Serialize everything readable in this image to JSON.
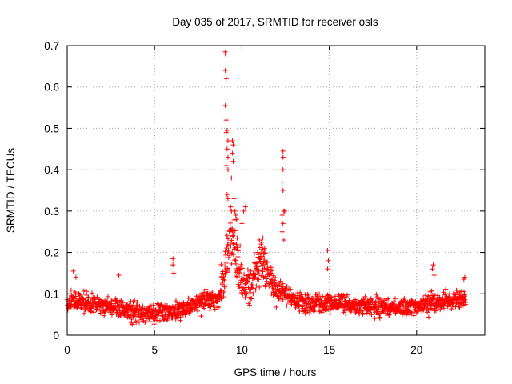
{
  "chart_data": {
    "type": "scatter",
    "title": "Day 035 of 2017, SRMTID for receiver osls",
    "xlabel": "GPS time / hours",
    "ylabel": "SRMTID / TECUs",
    "xlim": [
      0,
      23.9
    ],
    "ylim": [
      0,
      0.7
    ],
    "grid": true,
    "marker": "+",
    "series_color": "#ff0000",
    "x_ticks": [
      {
        "value": 0,
        "label": "0"
      },
      {
        "value": 5,
        "label": "5"
      },
      {
        "value": 10,
        "label": "10"
      },
      {
        "value": 15,
        "label": "15"
      },
      {
        "value": 20,
        "label": "20"
      }
    ],
    "y_ticks": [
      {
        "value": 0,
        "label": "0"
      },
      {
        "value": 0.1,
        "label": "0.1"
      },
      {
        "value": 0.2,
        "label": "0.2"
      },
      {
        "value": 0.3,
        "label": "0.3"
      },
      {
        "value": 0.4,
        "label": "0.4"
      },
      {
        "value": 0.5,
        "label": "0.5"
      },
      {
        "value": 0.6,
        "label": "0.6"
      },
      {
        "value": 0.7,
        "label": "0.7"
      }
    ],
    "x_range": [
      0.0,
      22.8
    ],
    "baseline_profile": [
      [
        0.0,
        0.075
      ],
      [
        0.5,
        0.085
      ],
      [
        1.0,
        0.078
      ],
      [
        2.0,
        0.07
      ],
      [
        3.0,
        0.065
      ],
      [
        4.0,
        0.058
      ],
      [
        5.0,
        0.052
      ],
      [
        6.0,
        0.058
      ],
      [
        7.0,
        0.07
      ],
      [
        8.0,
        0.085
      ],
      [
        8.7,
        0.09
      ],
      [
        9.2,
        0.2
      ],
      [
        9.5,
        0.23
      ],
      [
        10.0,
        0.13
      ],
      [
        10.5,
        0.12
      ],
      [
        11.0,
        0.17
      ],
      [
        11.5,
        0.15
      ],
      [
        12.0,
        0.11
      ],
      [
        12.5,
        0.1
      ],
      [
        13.0,
        0.08
      ],
      [
        14.0,
        0.075
      ],
      [
        15.0,
        0.08
      ],
      [
        16.0,
        0.072
      ],
      [
        17.0,
        0.07
      ],
      [
        18.0,
        0.068
      ],
      [
        19.0,
        0.065
      ],
      [
        20.0,
        0.07
      ],
      [
        21.0,
        0.08
      ],
      [
        22.0,
        0.085
      ],
      [
        22.8,
        0.09
      ]
    ],
    "peak_points": [
      {
        "x": 9.05,
        "y": 0.685
      },
      {
        "x": 9.05,
        "y": 0.68
      },
      {
        "x": 9.05,
        "y": 0.64
      },
      {
        "x": 9.1,
        "y": 0.62
      },
      {
        "x": 9.05,
        "y": 0.555
      },
      {
        "x": 9.1,
        "y": 0.52
      },
      {
        "x": 9.15,
        "y": 0.495
      },
      {
        "x": 9.1,
        "y": 0.49
      },
      {
        "x": 9.2,
        "y": 0.47
      },
      {
        "x": 9.45,
        "y": 0.47
      },
      {
        "x": 9.5,
        "y": 0.46
      },
      {
        "x": 9.15,
        "y": 0.45
      },
      {
        "x": 9.2,
        "y": 0.43
      },
      {
        "x": 9.45,
        "y": 0.44
      },
      {
        "x": 9.5,
        "y": 0.42
      },
      {
        "x": 9.1,
        "y": 0.41
      },
      {
        "x": 9.2,
        "y": 0.4
      },
      {
        "x": 9.4,
        "y": 0.38
      },
      {
        "x": 9.15,
        "y": 0.34
      },
      {
        "x": 9.2,
        "y": 0.33
      },
      {
        "x": 9.55,
        "y": 0.33
      },
      {
        "x": 9.6,
        "y": 0.3
      },
      {
        "x": 9.65,
        "y": 0.29
      },
      {
        "x": 9.7,
        "y": 0.28
      },
      {
        "x": 9.35,
        "y": 0.31
      },
      {
        "x": 9.4,
        "y": 0.3
      },
      {
        "x": 10.2,
        "y": 0.31
      },
      {
        "x": 10.1,
        "y": 0.3
      },
      {
        "x": 10.0,
        "y": 0.27
      },
      {
        "x": 12.35,
        "y": 0.445
      },
      {
        "x": 12.35,
        "y": 0.43
      },
      {
        "x": 12.35,
        "y": 0.4
      },
      {
        "x": 12.3,
        "y": 0.37
      },
      {
        "x": 12.35,
        "y": 0.35
      },
      {
        "x": 12.4,
        "y": 0.3
      },
      {
        "x": 12.45,
        "y": 0.3
      },
      {
        "x": 12.3,
        "y": 0.29
      },
      {
        "x": 12.35,
        "y": 0.27
      },
      {
        "x": 12.3,
        "y": 0.25
      },
      {
        "x": 12.4,
        "y": 0.23
      },
      {
        "x": 6.05,
        "y": 0.185
      },
      {
        "x": 6.05,
        "y": 0.17
      },
      {
        "x": 6.1,
        "y": 0.15
      },
      {
        "x": 14.9,
        "y": 0.205
      },
      {
        "x": 14.95,
        "y": 0.18
      },
      {
        "x": 14.9,
        "y": 0.16
      },
      {
        "x": 20.95,
        "y": 0.17
      },
      {
        "x": 20.9,
        "y": 0.16
      },
      {
        "x": 21.0,
        "y": 0.145
      },
      {
        "x": 0.35,
        "y": 0.155
      },
      {
        "x": 0.5,
        "y": 0.14
      },
      {
        "x": 2.95,
        "y": 0.145
      },
      {
        "x": 22.75,
        "y": 0.14
      },
      {
        "x": 22.7,
        "y": 0.135
      },
      {
        "x": 11.0,
        "y": 0.23
      },
      {
        "x": 11.1,
        "y": 0.22
      },
      {
        "x": 11.2,
        "y": 0.235
      },
      {
        "x": 11.3,
        "y": 0.21
      },
      {
        "x": 10.9,
        "y": 0.2
      },
      {
        "x": 11.15,
        "y": 0.19
      }
    ],
    "noise": {
      "count": 1700,
      "spread": 0.022,
      "seed": 35,
      "min_y": 0.015
    }
  }
}
